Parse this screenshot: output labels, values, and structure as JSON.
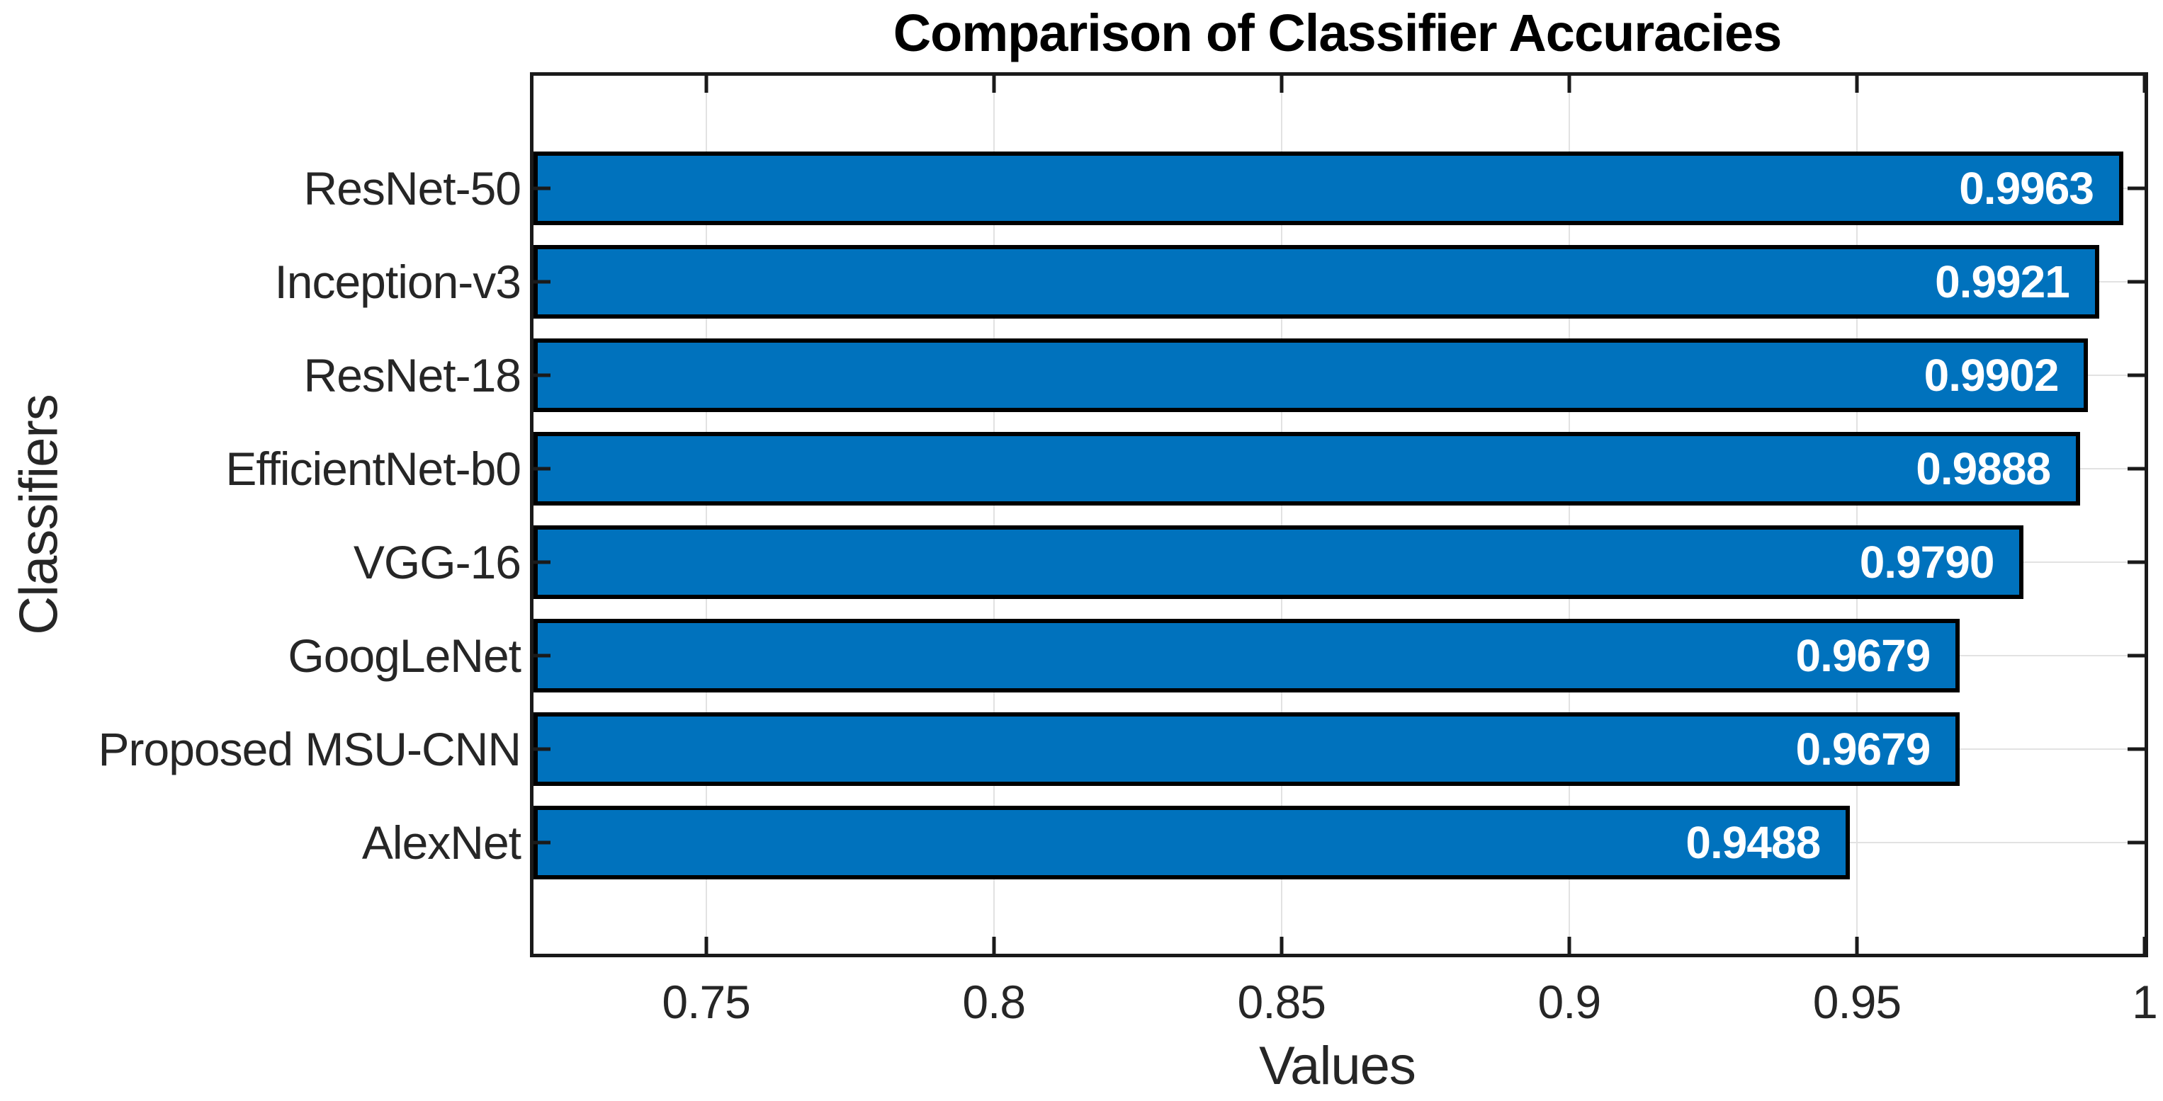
{
  "chart_data": {
    "type": "bar",
    "orientation": "horizontal",
    "title": "Comparison of Classifier Accuracies",
    "xlabel": "Values",
    "ylabel": "Classifiers",
    "categories": [
      "ResNet-50",
      "Inception-v3",
      "ResNet-18",
      "EfficientNet-b0",
      "VGG-16",
      "GoogLeNet",
      "Proposed MSU-CNN",
      "AlexNet"
    ],
    "values": [
      0.9963,
      0.9921,
      0.9902,
      0.9888,
      0.979,
      0.9679,
      0.9679,
      0.9488
    ],
    "value_labels": [
      "0.9963",
      "0.9921",
      "0.9902",
      "0.9888",
      "0.9790",
      "0.9679",
      "0.9679",
      "0.9488"
    ],
    "xlim": [
      0.72,
      1.0
    ],
    "x_ticks": [
      0.75,
      0.8,
      0.85,
      0.9,
      0.95,
      1
    ],
    "x_tick_labels": [
      "0.75",
      "0.8",
      "0.85",
      "0.9",
      "0.95",
      "1"
    ],
    "grid": "on",
    "legend": "none",
    "bar_color": "#0072BD",
    "bar_edge_color": "#000000",
    "axis_color": "#1a1a1a",
    "grid_color": "#e2e2e2",
    "value_label_color": "#ffffff"
  }
}
